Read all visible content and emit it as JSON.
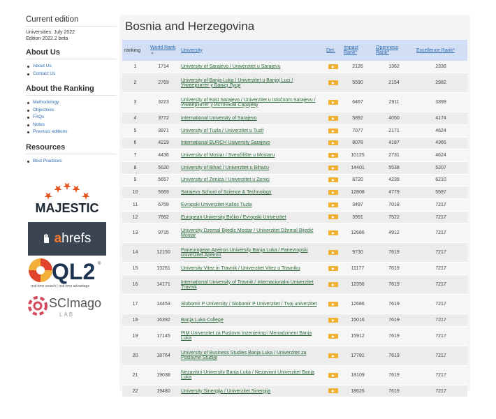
{
  "sidebar": {
    "current_edition": {
      "heading": "Current edition",
      "lines": [
        "Universities: July 2022",
        "Edition 2022.2 beta"
      ]
    },
    "about_us": {
      "heading": "About Us",
      "items": [
        "About Us",
        "Contact Us"
      ]
    },
    "about_ranking": {
      "heading": "About the Ranking",
      "items": [
        "Methodology",
        "Objectives",
        "FAQs",
        "Notes",
        "Previous editions"
      ]
    },
    "resources": {
      "heading": "Resources",
      "items": [
        "Best Practices"
      ]
    }
  },
  "logos": {
    "majestic": "MAJESTIC",
    "ahrefs_a": "a",
    "ahrefs_rest": "hrefs",
    "ql2": "QL2",
    "ql2_registered": "®",
    "ql2_tagline": "real-time search | real-time advantage",
    "scimago": "SCImago",
    "scimago_lab": "LAB"
  },
  "colors": {
    "header_bg": "#d2def3",
    "link_blue": "#2a6ab0",
    "university_link": "#2a6a3a",
    "detail_button": "#f0b030",
    "ahrefs_bg": "#3b4552",
    "ahrefs_accent": "#f57a2d",
    "ql2_navy": "#1e3350",
    "majestic_star": "#e8541e"
  },
  "main": {
    "title": "Bosnia and Herzegovina",
    "headers": {
      "ranking": "ranking",
      "world_rank": "World Rank",
      "university": "University",
      "det": "Det.",
      "impact": "Impact Rank*",
      "openness": "Openness Rank*",
      "excellence": "Excellence Rank*"
    },
    "rows": [
      {
        "ranking": "1",
        "world": "1714",
        "university": "University of Sarajevo / Univerzitet u Sarajevu",
        "impact": "2126",
        "openness": "1362",
        "excellence": "2338"
      },
      {
        "ranking": "2",
        "world": "2769",
        "university": "University of Banja Luka / Univerzitet u Banjoj Luci / Универзитет у Бањој Луци",
        "impact": "5590",
        "openness": "2154",
        "excellence": "2982"
      },
      {
        "ranking": "3",
        "world": "3223",
        "university": "University of East Sarajevo / Univerzitet u Istočnom Sarajevu / Универзитет у Источном Сарајеву",
        "impact": "6467",
        "openness": "2911",
        "excellence": "3399"
      },
      {
        "ranking": "4",
        "world": "3772",
        "university": "International University of Sarajevo",
        "impact": "5892",
        "openness": "4050",
        "excellence": "4174"
      },
      {
        "ranking": "5",
        "world": "3971",
        "university": "University of Tuzla / Univerzitet u Tuzli",
        "impact": "7077",
        "openness": "2171",
        "excellence": "4624"
      },
      {
        "ranking": "6",
        "world": "4219",
        "university": "International BURCH University Sarajevo",
        "impact": "8078",
        "openness": "4187",
        "excellence": "4366"
      },
      {
        "ranking": "7",
        "world": "4436",
        "university": "University of Mostar / Sveučilište u Mostaru",
        "impact": "10125",
        "openness": "2731",
        "excellence": "4624"
      },
      {
        "ranking": "8",
        "world": "5620",
        "university": "University of Bihać / Univerzitet u Bihaću",
        "impact": "14401",
        "openness": "5538",
        "excellence": "5207"
      },
      {
        "ranking": "9",
        "world": "5657",
        "university": "University of Zenica / Univerzitet u Zenici",
        "impact": "8720",
        "openness": "4239",
        "excellence": "6210"
      },
      {
        "ranking": "10",
        "world": "5669",
        "university": "Sarajevo School of Science & Technology",
        "impact": "12808",
        "openness": "4779",
        "excellence": "5597"
      },
      {
        "ranking": "11",
        "world": "6759",
        "university": "Evropski Univerzitet Kallos Tuzla",
        "impact": "3497",
        "openness": "7018",
        "excellence": "7217"
      },
      {
        "ranking": "12",
        "world": "7662",
        "university": "European University Brčko / Evropski Univerzitet",
        "impact": "3991",
        "openness": "7522",
        "excellence": "7217"
      },
      {
        "ranking": "13",
        "world": "9715",
        "university": "University Dzemal Bijedic Mostar / Univerzitet Džemal Bijedić Mostar",
        "impact": "12686",
        "openness": "4912",
        "excellence": "7217"
      },
      {
        "ranking": "14",
        "world": "12150",
        "university": "Paneuropean Apeiron University Banja Luka / Panevropski univerzitet Apeiron",
        "impact": "9730",
        "openness": "7619",
        "excellence": "7217"
      },
      {
        "ranking": "15",
        "world": "13261",
        "university": "University Vitez in Travnik / Univerzitet Vitez u Travniku",
        "impact": "11177",
        "openness": "7619",
        "excellence": "7217"
      },
      {
        "ranking": "16",
        "world": "14171",
        "university": "International University of Travnik / Internacionalni Univerzitet Travnik",
        "impact": "12356",
        "openness": "7619",
        "excellence": "7217"
      },
      {
        "ranking": "17",
        "world": "14453",
        "university": "Slobomir P University / Slobomir P Univerzitet / Tvoj univerzitet",
        "impact": "12686",
        "openness": "7619",
        "excellence": "7217"
      },
      {
        "ranking": "18",
        "world": "16392",
        "university": "Banja Luka College",
        "impact": "15016",
        "openness": "7619",
        "excellence": "7217"
      },
      {
        "ranking": "19",
        "world": "17145",
        "university": "PIM Univerzitet za Poslovni Inzenjering i Menadzment Banja Luka",
        "impact": "15912",
        "openness": "7619",
        "excellence": "7217"
      },
      {
        "ranking": "20",
        "world": "18764",
        "university": "University of Business Studies Banja Luka / Univerzitet za Poslovne Studije",
        "impact": "17781",
        "openness": "7619",
        "excellence": "7217"
      },
      {
        "ranking": "21",
        "world": "19038",
        "university": "Nezavisni University Banja Luka / Nezavisni Univerzitet Banja Luka",
        "impact": "18109",
        "openness": "7619",
        "excellence": "7217"
      },
      {
        "ranking": "22",
        "world": "19480",
        "university": "University Sinergija / Univerzitet Sinergija",
        "impact": "18626",
        "openness": "7619",
        "excellence": "7217"
      }
    ]
  }
}
